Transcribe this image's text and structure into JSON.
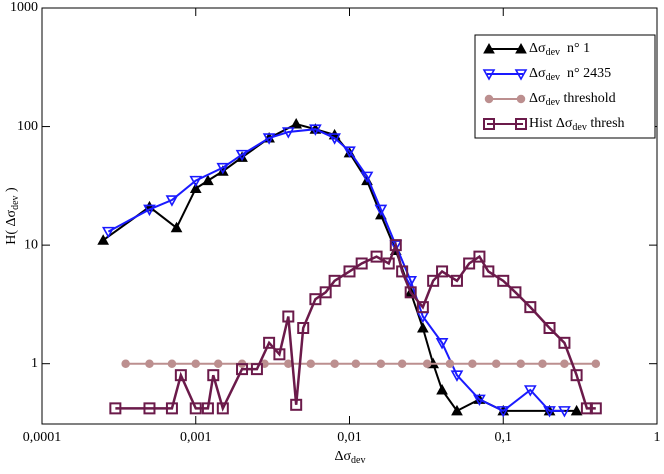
{
  "chart_data": {
    "type": "line",
    "xlabel": "Δσdev",
    "ylabel": "H( Δσdev )",
    "xlog": true,
    "ylog": true,
    "xlim": [
      0.0001,
      1
    ],
    "ylim": [
      0.31,
      1000
    ],
    "xticks": [
      {
        "value": 0.0001,
        "label": "0,0001"
      },
      {
        "value": 0.001,
        "label": "0,001"
      },
      {
        "value": 0.01,
        "label": "0,01"
      },
      {
        "value": 0.1,
        "label": "0,1"
      },
      1
    ],
    "yticks": [
      1,
      10,
      100,
      1000
    ],
    "legend": "upper right",
    "series": [
      {
        "name": "Δσdev  n° 1",
        "color": "#000000",
        "marker": "triangle-up",
        "filled": true,
        "x": [
          0.00025,
          0.0005,
          0.00075,
          0.001,
          0.0012,
          0.0015,
          0.002,
          0.003,
          0.0045,
          0.006,
          0.008,
          0.01,
          0.013,
          0.016,
          0.02,
          0.025,
          0.03,
          0.035,
          0.04,
          0.05,
          0.07,
          0.1,
          0.2,
          0.3
        ],
        "values": [
          11,
          21,
          14,
          30,
          35,
          42,
          55,
          80,
          105,
          95,
          85,
          60,
          35,
          18,
          9,
          4,
          2,
          1,
          0.6,
          0.4,
          0.5,
          0.4,
          0.4,
          0.4
        ]
      },
      {
        "name": "Δσdev  n° 2435",
        "color": "#1a1aff",
        "marker": "triangle-down",
        "filled": false,
        "x": [
          0.00027,
          0.0005,
          0.0007,
          0.001,
          0.0015,
          0.002,
          0.003,
          0.004,
          0.006,
          0.008,
          0.01,
          0.013,
          0.016,
          0.02,
          0.025,
          0.03,
          0.04,
          0.05,
          0.07,
          0.1,
          0.15,
          0.2,
          0.25
        ],
        "values": [
          13,
          20,
          24,
          35,
          45,
          58,
          80,
          90,
          95,
          80,
          62,
          38,
          20,
          10,
          5,
          2.5,
          1.5,
          0.8,
          0.5,
          0.4,
          0.6,
          0.4,
          0.4
        ]
      },
      {
        "name": "Δσdev threshold",
        "color": "#bc8f8f",
        "marker": "circle",
        "filled": true,
        "x": [
          0.00035,
          0.0005,
          0.0007,
          0.001,
          0.0014,
          0.002,
          0.0028,
          0.004,
          0.0056,
          0.008,
          0.011,
          0.016,
          0.022,
          0.032,
          0.045,
          0.063,
          0.09,
          0.13,
          0.18,
          0.25,
          0.4
        ],
        "values": [
          1,
          1,
          1,
          1,
          1,
          1,
          1,
          1,
          1,
          1,
          1,
          1,
          1,
          1,
          1,
          1,
          1,
          1,
          1,
          1,
          1
        ]
      },
      {
        "name": "Hist Δσdev thresh",
        "color": "#6b1a4a",
        "marker": "square",
        "filled": false,
        "x": [
          0.0003,
          0.0005,
          0.0007,
          0.0008,
          0.001,
          0.0012,
          0.0013,
          0.0015,
          0.002,
          0.0025,
          0.003,
          0.0035,
          0.004,
          0.0045,
          0.005,
          0.006,
          0.007,
          0.008,
          0.01,
          0.012,
          0.015,
          0.018,
          0.02,
          0.022,
          0.025,
          0.03,
          0.035,
          0.04,
          0.05,
          0.06,
          0.07,
          0.08,
          0.1,
          0.12,
          0.15,
          0.2,
          0.25,
          0.3,
          0.35,
          0.4
        ],
        "values": [
          0.42,
          0.42,
          0.42,
          0.8,
          0.42,
          0.42,
          0.8,
          0.42,
          0.9,
          0.9,
          1.5,
          1.2,
          2.5,
          0.45,
          2,
          3.5,
          4,
          5,
          6,
          7,
          8,
          7,
          10,
          6,
          4,
          3,
          5,
          6,
          5,
          7,
          8,
          6,
          5,
          4,
          3,
          2,
          1.5,
          0.8,
          0.42,
          0.42
        ]
      }
    ]
  }
}
